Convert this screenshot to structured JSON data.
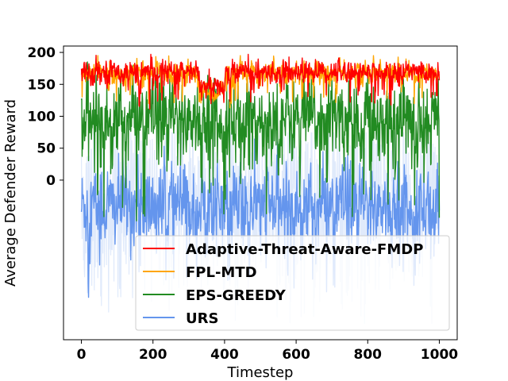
{
  "chart_data": {
    "type": "line",
    "title": "",
    "xlabel": "Timestep",
    "ylabel": "Average Defender Reward",
    "xlim": [
      -50,
      1050
    ],
    "ylim": [
      -250,
      210
    ],
    "xticks": [
      0,
      200,
      400,
      600,
      800,
      1000
    ],
    "yticks": [
      0,
      50,
      100,
      150,
      200
    ],
    "grid": false,
    "legend_position": "lower-right",
    "n_points": 1001,
    "series": [
      {
        "name": "Adaptive-Threat-Aware-FMDP",
        "color": "#ff0000",
        "mean": 170,
        "noise": 12,
        "dip": {
          "x_from": 330,
          "x_to": 400,
          "mean": 145
        },
        "range": [
          95,
          197
        ]
      },
      {
        "name": "FPL-MTD",
        "color": "#ffa500",
        "mean": 168,
        "noise": 12,
        "dip": {
          "x_from": 330,
          "x_to": 400,
          "mean": 140
        },
        "range": [
          95,
          195
        ]
      },
      {
        "name": "EPS-GREEDY",
        "color": "#228b22",
        "mean": 95,
        "noise": 45,
        "range": [
          -125,
          185
        ]
      },
      {
        "name": "URS",
        "color": "#6495ed",
        "mean": -40,
        "noise": 45,
        "range": [
          -225,
          75
        ]
      }
    ]
  }
}
